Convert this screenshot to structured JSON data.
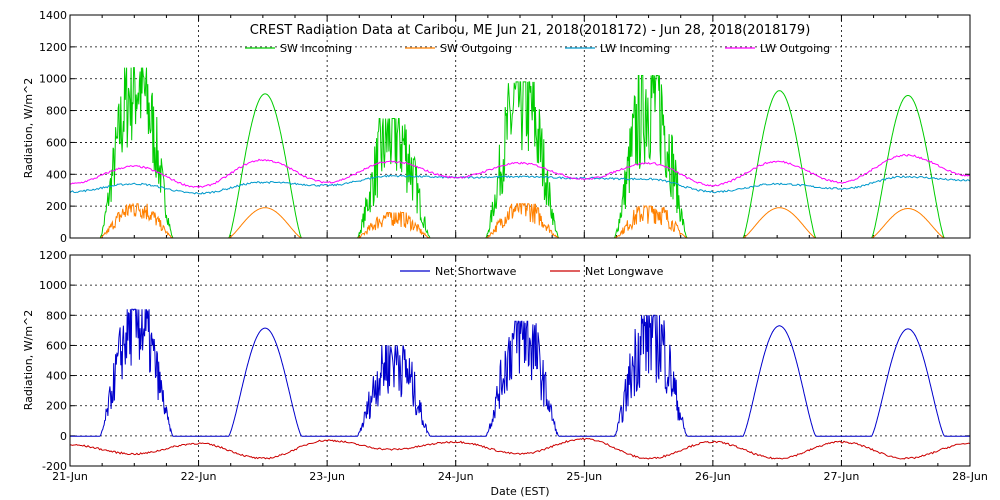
{
  "chart_data": [
    {
      "type": "line",
      "title": "CREST Radiation Data at Caribou, ME   Jun 21, 2018(2018172) - Jun 28, 2018(2018179)",
      "xlabel": "",
      "ylabel": "Radiation, W/m^2",
      "ylim": [
        0,
        1400
      ],
      "yticks": [
        "0",
        "200",
        "400",
        "600",
        "800",
        "1000",
        "1200",
        "1400"
      ],
      "xlim_days": [
        0,
        7
      ],
      "legend_position": "top",
      "grid": true,
      "series": [
        {
          "name": "SW Incoming",
          "color": "#00cc00",
          "daily_peak": [
            1070,
            905,
            750,
            980,
            1020,
            925,
            895
          ],
          "noise": [
            0.45,
            0.02,
            0.55,
            0.5,
            0.55,
            0.02,
            0.02
          ]
        },
        {
          "name": "SW Outgoing",
          "color": "#ff8000",
          "daily_peak": [
            215,
            190,
            160,
            215,
            200,
            190,
            185
          ],
          "noise": [
            0.45,
            0.02,
            0.55,
            0.5,
            0.55,
            0.02,
            0.02
          ]
        },
        {
          "name": "LW Incoming",
          "color": "#0099cc",
          "x": [
            0,
            0.5,
            1,
            1.5,
            2,
            2.5,
            3,
            3.5,
            4,
            4.5,
            5,
            5.5,
            6,
            6.5,
            7
          ],
          "y": [
            290,
            340,
            280,
            350,
            330,
            390,
            380,
            385,
            375,
            370,
            290,
            340,
            310,
            385,
            360
          ]
        },
        {
          "name": "LW Outgoing",
          "color": "#ff00ff",
          "x": [
            0,
            0.5,
            1,
            1.5,
            2,
            2.5,
            3,
            3.5,
            4,
            4.5,
            5,
            5.5,
            6,
            6.5,
            7
          ],
          "y": [
            340,
            450,
            320,
            490,
            350,
            480,
            380,
            470,
            370,
            470,
            330,
            480,
            350,
            520,
            390
          ]
        }
      ]
    },
    {
      "type": "line",
      "title": "",
      "xlabel": "Date (EST)",
      "ylabel": "Radiation, W/m^2",
      "ylim": [
        -200,
        1200
      ],
      "yticks": [
        "-200",
        "0",
        "200",
        "400",
        "600",
        "800",
        "1000",
        "1200"
      ],
      "xticks": [
        "21-Jun",
        "22-Jun",
        "23-Jun",
        "24-Jun",
        "25-Jun",
        "26-Jun",
        "27-Jun",
        "28-Jun"
      ],
      "legend_position": "top",
      "grid": true,
      "series": [
        {
          "name": "Net Shortwave",
          "color": "#0000cc",
          "daily_peak": [
            840,
            715,
            600,
            760,
            800,
            730,
            710
          ],
          "noise": [
            0.45,
            0.02,
            0.55,
            0.5,
            0.55,
            0.02,
            0.02
          ]
        },
        {
          "name": "Net Longwave",
          "color": "#cc0000",
          "x": [
            0,
            0.5,
            1,
            1.5,
            2,
            2.5,
            3,
            3.5,
            4,
            4.5,
            5,
            5.5,
            6,
            6.5,
            7
          ],
          "y": [
            -60,
            -120,
            -50,
            -150,
            -30,
            -90,
            -40,
            -120,
            -20,
            -150,
            -40,
            -150,
            -40,
            -150,
            -50
          ]
        }
      ]
    }
  ]
}
